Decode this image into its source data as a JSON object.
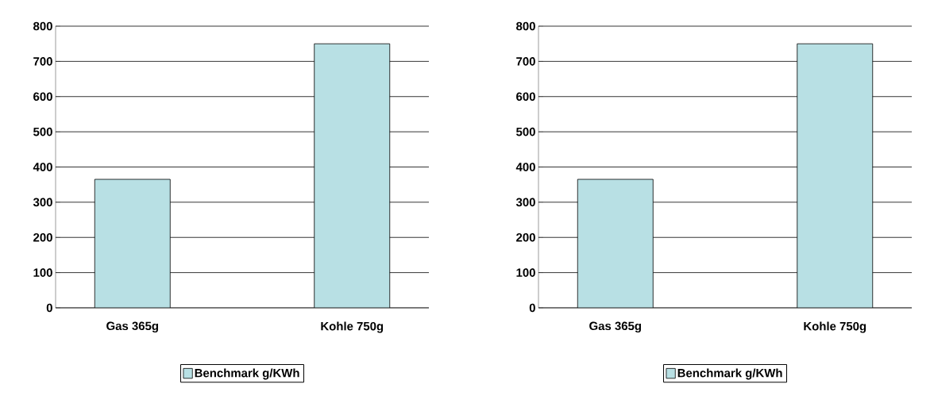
{
  "chart_data": [
    {
      "type": "bar",
      "categories": [
        "Gas 365g",
        "Kohle 750g"
      ],
      "series": [
        {
          "name": "Benchmark g/KWh",
          "color": "#b8e0e4",
          "values": [
            365,
            750
          ]
        }
      ],
      "ylim": [
        0,
        800
      ],
      "yticks": [
        0,
        100,
        200,
        300,
        400,
        500,
        600,
        700,
        800
      ],
      "grid": "y",
      "legend": "bottom"
    },
    {
      "type": "bar",
      "categories": [
        "Gas 365g",
        "Kohle 750g"
      ],
      "series": [
        {
          "name": "Benchmark g/KWh",
          "color": "#b8e0e4",
          "values": [
            365,
            750
          ]
        }
      ],
      "ylim": [
        0,
        800
      ],
      "yticks": [
        0,
        100,
        200,
        300,
        400,
        500,
        600,
        700,
        800
      ],
      "grid": "y",
      "legend": "bottom"
    }
  ]
}
